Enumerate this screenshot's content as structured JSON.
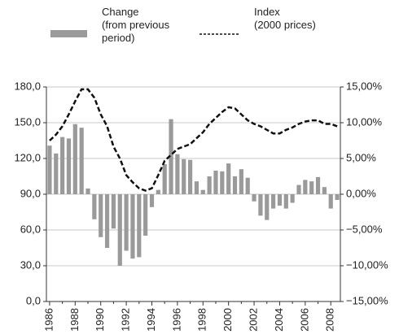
{
  "chart_data": {
    "type": "bar",
    "categories": [
      "1986",
      null,
      null,
      null,
      "1988",
      null,
      null,
      null,
      "1990",
      null,
      null,
      null,
      "1992",
      null,
      null,
      null,
      "1994",
      null,
      null,
      null,
      "1996",
      null,
      null,
      null,
      "1998",
      null,
      null,
      null,
      "2000",
      null,
      null,
      null,
      "2002",
      null,
      null,
      null,
      "2004",
      null,
      null,
      null,
      "2006",
      null,
      null,
      null,
      "2008",
      null
    ],
    "series": [
      {
        "name": "Change\n(from previous\nperiod)",
        "type": "bar",
        "axis": "y2",
        "color": "#9a9a9a",
        "values": [
          6.8,
          5.7,
          8.0,
          7.8,
          9.8,
          9.3,
          0.8,
          -3.5,
          -6.0,
          -7.5,
          -4.8,
          -10.0,
          -7.9,
          -9.0,
          -8.8,
          -5.8,
          -1.8,
          0.6,
          4.2,
          10.5,
          5.6,
          4.9,
          4.8,
          1.8,
          0.6,
          2.5,
          3.3,
          3.2,
          4.3,
          2.5,
          3.5,
          2.3,
          -1.0,
          -3.0,
          -3.6,
          -2.0,
          -1.6,
          -2.0,
          -1.2,
          1.3,
          2.0,
          1.8,
          2.4,
          1.0,
          -2.0,
          -0.8
        ]
      },
      {
        "name": "Index\n(2000 prices)",
        "type": "line",
        "axis": "y",
        "color": "#111111",
        "values": [
          135,
          140,
          147,
          157,
          168,
          178,
          178,
          171,
          157,
          147,
          130,
          120,
          106,
          100,
          95,
          93,
          95,
          106,
          118,
          123,
          128,
          130,
          132,
          137,
          142,
          149,
          154,
          159,
          163,
          162,
          157,
          152,
          149,
          147,
          144,
          141,
          141,
          144,
          146,
          149,
          151,
          152,
          152,
          149,
          149,
          147
        ]
      }
    ],
    "ylim": [
      0,
      180
    ],
    "yticks": [
      {
        "value": 0,
        "label": "0,0"
      },
      {
        "value": 30,
        "label": "30,0"
      },
      {
        "value": 60,
        "label": "60,0"
      },
      {
        "value": 90,
        "label": "90,0"
      },
      {
        "value": 120,
        "label": "120,0"
      },
      {
        "value": 150,
        "label": "150,0"
      },
      {
        "value": 180,
        "label": "180,0"
      }
    ],
    "y2lim": [
      -15,
      15
    ],
    "y2ticks": [
      {
        "value": -15,
        "label": "−15,00%"
      },
      {
        "value": -10,
        "label": "−10,00%"
      },
      {
        "value": -5,
        "label": "−5,00%"
      },
      {
        "value": 0,
        "label": "0,00%"
      },
      {
        "value": 5,
        "label": "5,00%"
      },
      {
        "value": 10,
        "label": "10,00%"
      },
      {
        "value": 15,
        "label": "15,00%"
      }
    ],
    "grid": true
  }
}
